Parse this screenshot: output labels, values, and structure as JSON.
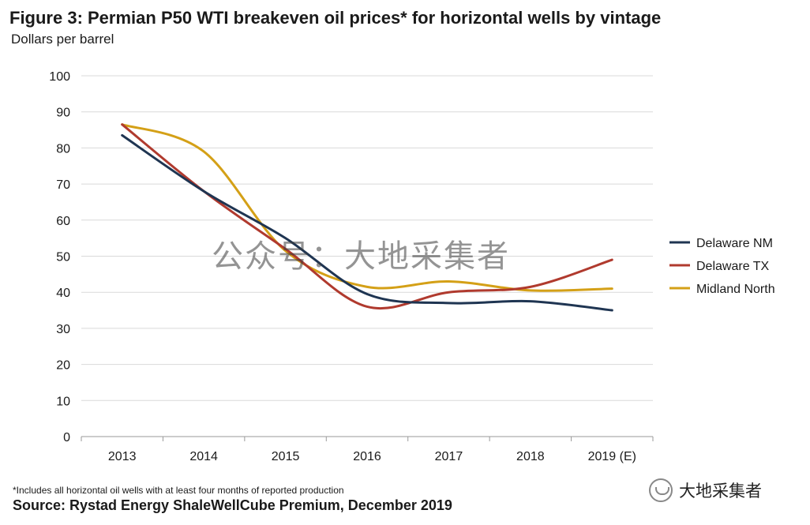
{
  "header": {
    "title": "Figure 3: Permian P50 WTI breakeven oil prices* for horizontal wells by vintage",
    "subtitle": "Dollars per barrel"
  },
  "footer": {
    "footnote": "*Includes all horizontal oil wells with at least four months of reported production",
    "source": "Source: Rystad Energy ShaleWellCube Premium, December 2019",
    "brand": "大地采集者"
  },
  "watermark": "公众号：大地采集者",
  "chart_data": {
    "type": "line",
    "title": "Figure 3: Permian P50 WTI breakeven oil prices* for horizontal wells by vintage",
    "ylabel": "Dollars per barrel",
    "xlabel": "",
    "categories": [
      "2013",
      "2014",
      "2015",
      "2016",
      "2017",
      "2018",
      "2019 (E)"
    ],
    "ylim": [
      0,
      100
    ],
    "yticks": [
      0,
      10,
      20,
      30,
      40,
      50,
      60,
      70,
      80,
      90,
      100
    ],
    "grid": true,
    "legend_position": "right",
    "series": [
      {
        "name": "Delaware NM",
        "color": "#1f3552",
        "values": [
          83.5,
          68,
          55,
          39.5,
          37,
          37.5,
          35
        ]
      },
      {
        "name": "Delaware TX",
        "color": "#b03a2e",
        "values": [
          86.5,
          68,
          52,
          36,
          40,
          41.5,
          49
        ]
      },
      {
        "name": "Midland North",
        "color": "#d4a017",
        "values": [
          86.5,
          79,
          51.5,
          41.5,
          43,
          40.5,
          41
        ]
      }
    ]
  }
}
